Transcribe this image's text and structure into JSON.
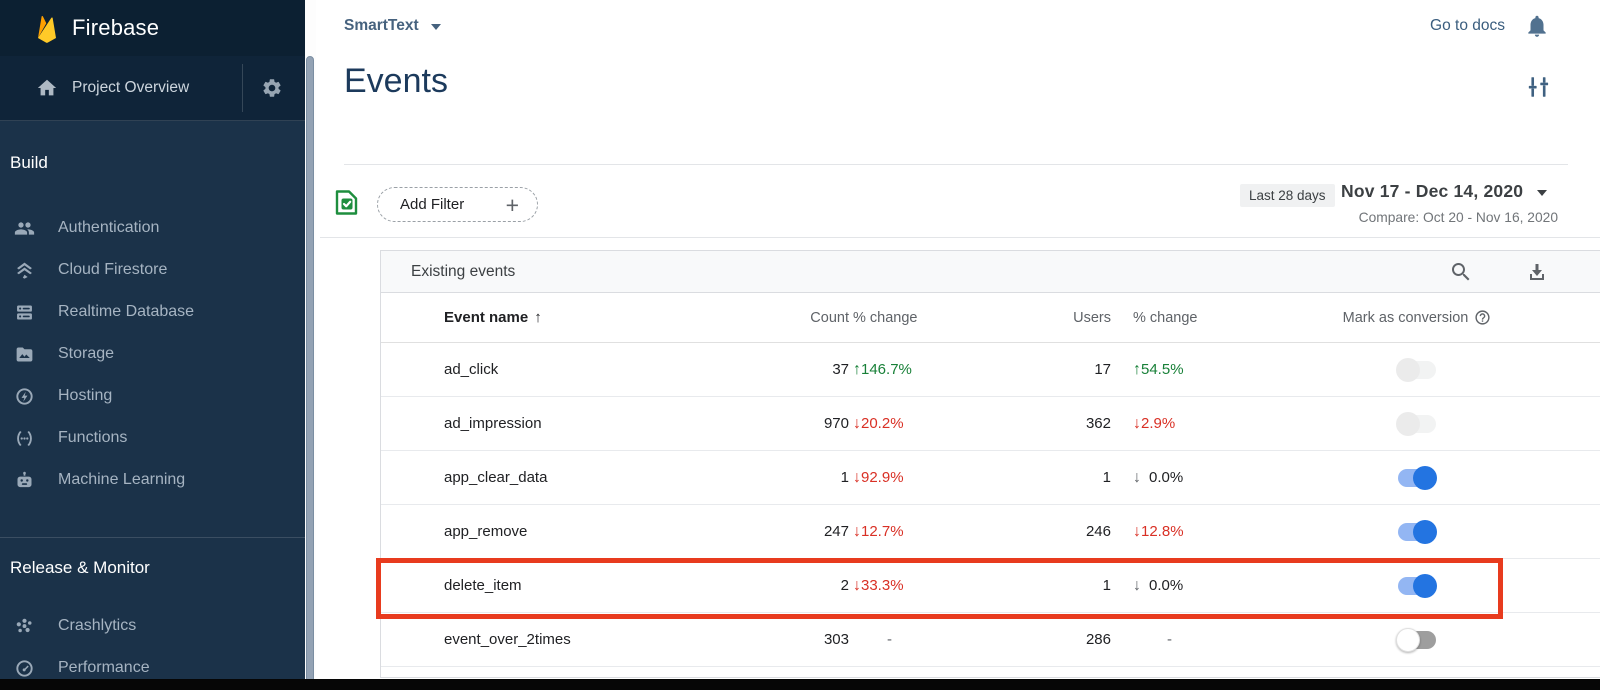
{
  "colors": {
    "accent_blue": "#2374e1",
    "positive_green": "#188038",
    "negative_red": "#d93025",
    "annotation_red": "#e83b1e",
    "sidebar_navy": "#1b3249"
  },
  "sidebar": {
    "brand": "Firebase",
    "brand_icon": "firebase-flame-icon",
    "project_overview": "Project Overview",
    "sections": [
      {
        "label": "Build",
        "items": [
          {
            "icon": "people-icon",
            "label": "Authentication"
          },
          {
            "icon": "firestore-icon",
            "label": "Cloud Firestore"
          },
          {
            "icon": "database-icon",
            "label": "Realtime Database"
          },
          {
            "icon": "storage-icon",
            "label": "Storage"
          },
          {
            "icon": "hosting-icon",
            "label": "Hosting"
          },
          {
            "icon": "functions-icon",
            "label": "Functions"
          },
          {
            "icon": "robot-icon",
            "label": "Machine Learning"
          }
        ]
      },
      {
        "label": "Release & Monitor",
        "items": [
          {
            "icon": "crashlytics-icon",
            "label": "Crashlytics"
          },
          {
            "icon": "performance-icon",
            "label": "Performance"
          }
        ]
      }
    ]
  },
  "topbar": {
    "project_name": "SmartText",
    "go_to_docs": "Go to docs"
  },
  "page": {
    "title": "Events"
  },
  "filter_bar": {
    "add_filter_label": "Add Filter",
    "range_chip": "Last 28 days",
    "date_range": "Nov 17 - Dec 14, 2020",
    "compare": "Compare: Oct 20 - Nov 16, 2020"
  },
  "table": {
    "title": "Existing events",
    "columns": {
      "event": "Event name",
      "count": "Count",
      "change": "% change",
      "users": "Users",
      "change2": "% change",
      "conversion": "Mark as conversion"
    },
    "rows": [
      {
        "name": "ad_click",
        "count": "37",
        "count_change": {
          "dir": "up",
          "value": "146.7%",
          "tone": "positive"
        },
        "users": "17",
        "users_change": {
          "dir": "up",
          "value": "54.5%",
          "tone": "positive"
        },
        "conversion": "disabled",
        "highlighted": false
      },
      {
        "name": "ad_impression",
        "count": "970",
        "count_change": {
          "dir": "down",
          "value": "20.2%",
          "tone": "negative"
        },
        "users": "362",
        "users_change": {
          "dir": "down",
          "value": "2.9%",
          "tone": "negative"
        },
        "conversion": "disabled",
        "highlighted": false
      },
      {
        "name": "app_clear_data",
        "count": "1",
        "count_change": {
          "dir": "down",
          "value": "92.9%",
          "tone": "negative"
        },
        "users": "1",
        "users_change": {
          "dir": "down",
          "value": "0.0%",
          "tone": "neutral"
        },
        "conversion": "on",
        "highlighted": false
      },
      {
        "name": "app_remove",
        "count": "247",
        "count_change": {
          "dir": "down",
          "value": "12.7%",
          "tone": "negative"
        },
        "users": "246",
        "users_change": {
          "dir": "down",
          "value": "12.8%",
          "tone": "negative"
        },
        "conversion": "on",
        "highlighted": false
      },
      {
        "name": "delete_item",
        "count": "2",
        "count_change": {
          "dir": "down",
          "value": "33.3%",
          "tone": "negative"
        },
        "users": "1",
        "users_change": {
          "dir": "down",
          "value": "0.0%",
          "tone": "neutral"
        },
        "conversion": "on",
        "highlighted": true
      },
      {
        "name": "event_over_2times",
        "count": "303",
        "count_change": {
          "dir": "none",
          "value": "-",
          "tone": "none"
        },
        "users": "286",
        "users_change": {
          "dir": "none",
          "value": "-",
          "tone": "none"
        },
        "conversion": "off",
        "highlighted": false
      }
    ]
  }
}
